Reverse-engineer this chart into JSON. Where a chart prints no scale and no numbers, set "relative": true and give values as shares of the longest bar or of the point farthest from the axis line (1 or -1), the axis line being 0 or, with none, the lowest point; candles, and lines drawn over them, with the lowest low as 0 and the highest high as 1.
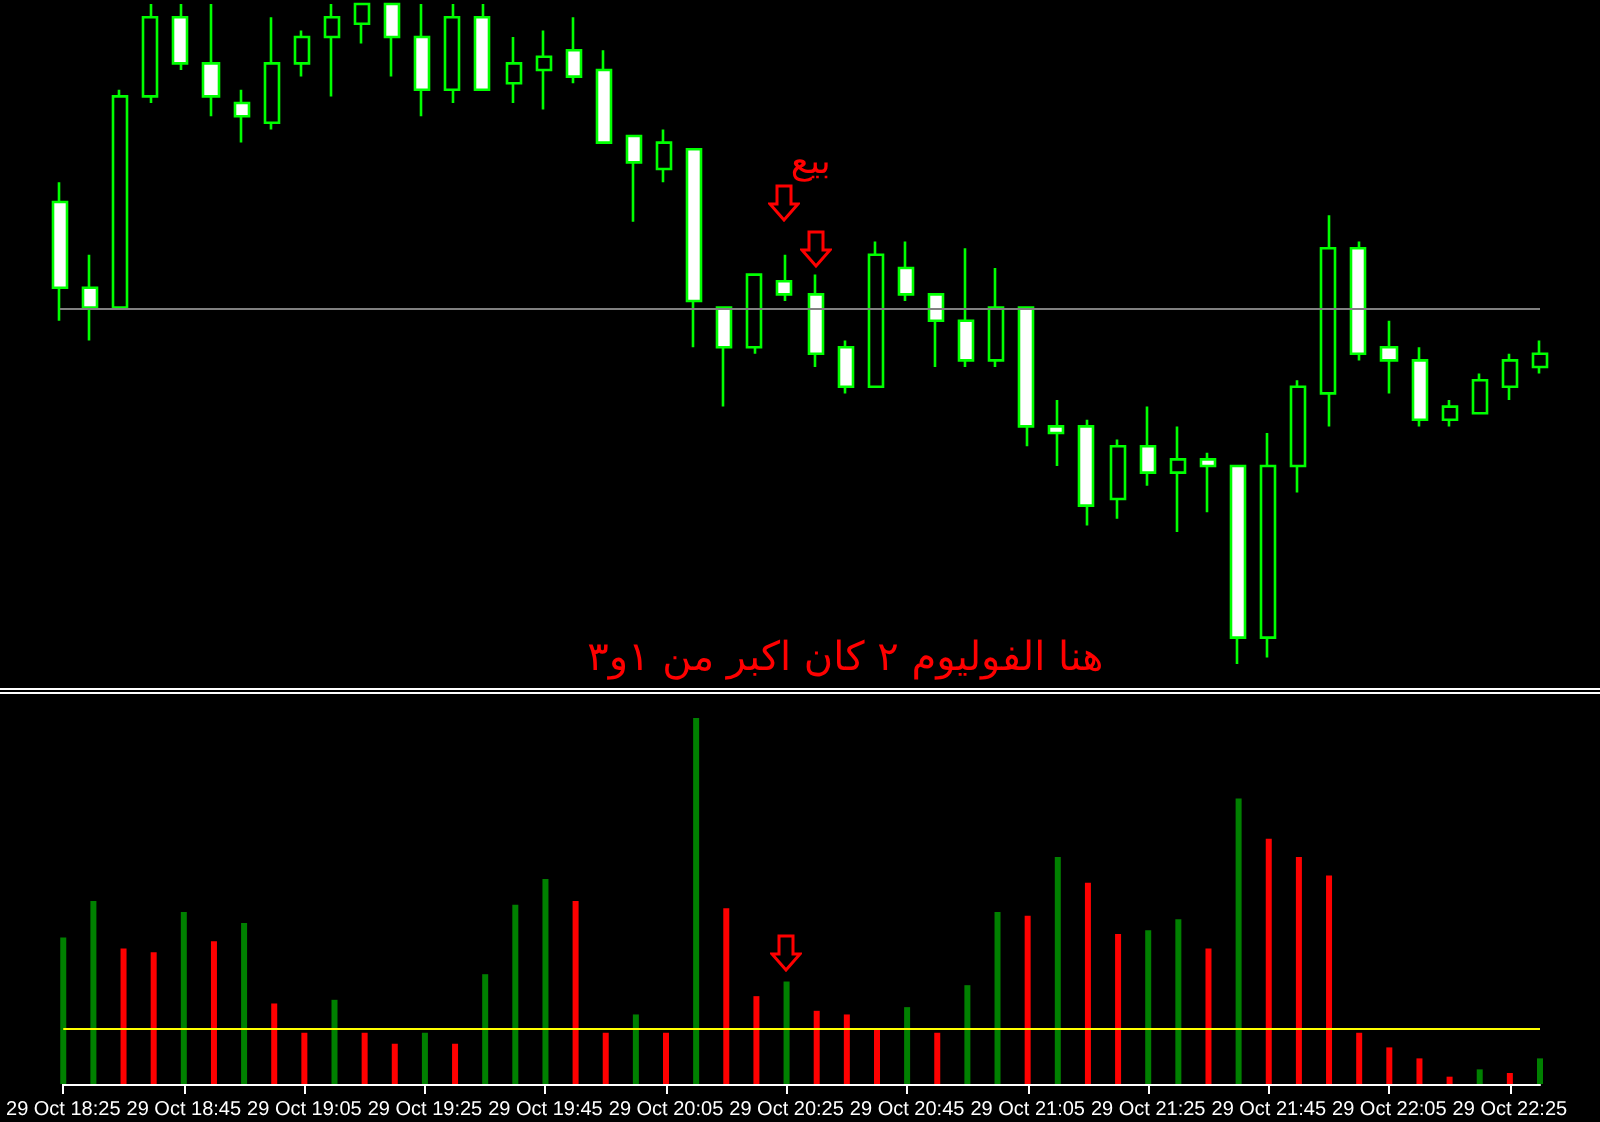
{
  "chart_data": [
    {
      "type": "candlestick",
      "relative": true,
      "tick_labels": false,
      "color": "#00ff00",
      "categories": [
        null,
        null,
        null,
        null,
        null,
        null,
        null,
        null,
        null,
        null,
        null,
        null,
        null,
        null,
        null,
        null,
        null,
        null,
        null,
        null,
        null,
        null,
        null,
        null,
        null,
        null,
        null,
        null,
        null,
        null,
        null,
        null,
        null,
        null,
        null,
        null,
        null,
        null,
        null,
        null,
        null,
        null,
        null,
        null,
        null,
        null,
        null,
        null,
        null,
        null
      ],
      "ohlc": [
        [
          0.7,
          0.73,
          0.52,
          0.57
        ],
        [
          0.57,
          0.62,
          0.49,
          0.54
        ],
        [
          0.54,
          0.87,
          0.54,
          0.86
        ],
        [
          0.86,
          1,
          0.85,
          0.98
        ],
        [
          0.98,
          1,
          0.9,
          0.91
        ],
        [
          0.91,
          1,
          0.83,
          0.86
        ],
        [
          0.85,
          0.87,
          0.79,
          0.83
        ],
        [
          0.82,
          0.98,
          0.81,
          0.91
        ],
        [
          0.91,
          0.96,
          0.89,
          0.95
        ],
        [
          0.95,
          1,
          0.86,
          0.98
        ],
        [
          0.97,
          1,
          0.94,
          1
        ],
        [
          1,
          1,
          0.89,
          0.95
        ],
        [
          0.95,
          1,
          0.83,
          0.87
        ],
        [
          0.87,
          1,
          0.85,
          0.98
        ],
        [
          0.98,
          1,
          0.87,
          0.87
        ],
        [
          0.88,
          0.95,
          0.85,
          0.91
        ],
        [
          0.9,
          0.96,
          0.84,
          0.92
        ],
        [
          0.93,
          0.98,
          0.88,
          0.89
        ],
        [
          0.9,
          0.93,
          0.79,
          0.79
        ],
        [
          0.8,
          0.8,
          0.67,
          0.76
        ],
        [
          0.75,
          0.81,
          0.73,
          0.79
        ],
        [
          0.78,
          0.78,
          0.48,
          0.55
        ],
        [
          0.54,
          0.54,
          0.39,
          0.48
        ],
        [
          0.48,
          0.59,
          0.47,
          0.59
        ],
        [
          0.58,
          0.62,
          0.55,
          0.56
        ],
        [
          0.56,
          0.59,
          0.45,
          0.47
        ],
        [
          0.48,
          0.49,
          0.41,
          0.42
        ],
        [
          0.42,
          0.64,
          0.42,
          0.62
        ],
        [
          0.6,
          0.64,
          0.55,
          0.56
        ],
        [
          0.56,
          0.56,
          0.45,
          0.52
        ],
        [
          0.52,
          0.63,
          0.45,
          0.46
        ],
        [
          0.46,
          0.6,
          0.45,
          0.54
        ],
        [
          0.54,
          0.54,
          0.33,
          0.36
        ],
        [
          0.36,
          0.4,
          0.3,
          0.35
        ],
        [
          0.36,
          0.37,
          0.21,
          0.24
        ],
        [
          0.25,
          0.34,
          0.22,
          0.33
        ],
        [
          0.33,
          0.39,
          0.27,
          0.29
        ],
        [
          0.29,
          0.36,
          0.2,
          0.31
        ],
        [
          0.31,
          0.32,
          0.23,
          0.3
        ],
        [
          0.3,
          0.3,
          0,
          0.04
        ],
        [
          0.04,
          0.35,
          0.01,
          0.3
        ],
        [
          0.3,
          0.43,
          0.26,
          0.42
        ],
        [
          0.41,
          0.68,
          0.36,
          0.63
        ],
        [
          0.63,
          0.64,
          0.46,
          0.47
        ],
        [
          0.48,
          0.52,
          0.41,
          0.46
        ],
        [
          0.46,
          0.48,
          0.36,
          0.37
        ],
        [
          0.37,
          0.4,
          0.36,
          0.39
        ],
        [
          0.38,
          0.44,
          0.38,
          0.43
        ],
        [
          0.42,
          0.47,
          0.4,
          0.46
        ],
        [
          0.45,
          0.49,
          0.44,
          0.47
        ]
      ],
      "ref_lines": [
        {
          "axis": "y",
          "value": 0.54,
          "color": "#808080"
        }
      ],
      "annotations": [
        "بيع",
        "هنا الفوليوم ٢ كان اكبر من ١و٣"
      ]
    },
    {
      "type": "bar",
      "relative": true,
      "tick_labels": "x",
      "categories": [
        "29 Oct 18:25",
        null,
        null,
        null,
        "29 Oct 18:45",
        null,
        null,
        null,
        "29 Oct 19:05",
        null,
        null,
        null,
        "29 Oct 19:25",
        null,
        null,
        null,
        "29 Oct 19:45",
        null,
        null,
        null,
        "29 Oct 20:05",
        null,
        null,
        null,
        "29 Oct 20:25",
        null,
        null,
        null,
        "29 Oct 20:45",
        null,
        null,
        null,
        "29 Oct 21:05",
        null,
        null,
        null,
        "29 Oct 21:25",
        null,
        null,
        null,
        "29 Oct 21:45",
        null,
        null,
        null,
        "29 Oct 22:05",
        null,
        null,
        null,
        "29 Oct 22:25",
        null
      ],
      "values": [
        0.4,
        0.5,
        0.37,
        0.36,
        0.47,
        0.39,
        0.44,
        0.22,
        0.14,
        0.23,
        0.14,
        0.11,
        0.14,
        0.11,
        0.3,
        0.49,
        0.56,
        0.5,
        0.14,
        0.19,
        0.14,
        1,
        0.48,
        0.24,
        0.28,
        0.2,
        0.19,
        0.15,
        0.21,
        0.14,
        0.27,
        0.47,
        0.46,
        0.62,
        0.55,
        0.41,
        0.42,
        0.45,
        0.37,
        0.78,
        0.67,
        0.62,
        0.57,
        0.14,
        0.1,
        0.07,
        0.02,
        0.04,
        0.03,
        0.07
      ],
      "colors": [
        "#008000",
        "#008000",
        "#ff0000",
        "#ff0000",
        "#008000",
        "#ff0000",
        "#008000",
        "#ff0000",
        "#ff0000",
        "#008000",
        "#ff0000",
        "#ff0000",
        "#008000",
        "#ff0000",
        "#008000",
        "#008000",
        "#008000",
        "#ff0000",
        "#ff0000",
        "#008000",
        "#ff0000",
        "#008000",
        "#ff0000",
        "#ff0000",
        "#008000",
        "#ff0000",
        "#ff0000",
        "#ff0000",
        "#008000",
        "#ff0000",
        "#008000",
        "#008000",
        "#ff0000",
        "#008000",
        "#ff0000",
        "#ff0000",
        "#008000",
        "#008000",
        "#ff0000",
        "#008000",
        "#ff0000",
        "#ff0000",
        "#ff0000",
        "#ff0000",
        "#ff0000",
        "#ff0000",
        "#ff0000",
        "#008000",
        "#ff0000",
        "#008000"
      ],
      "ref_lines": [
        {
          "axis": "y",
          "value": 0.15,
          "color": "#ffff00"
        }
      ]
    }
  ]
}
